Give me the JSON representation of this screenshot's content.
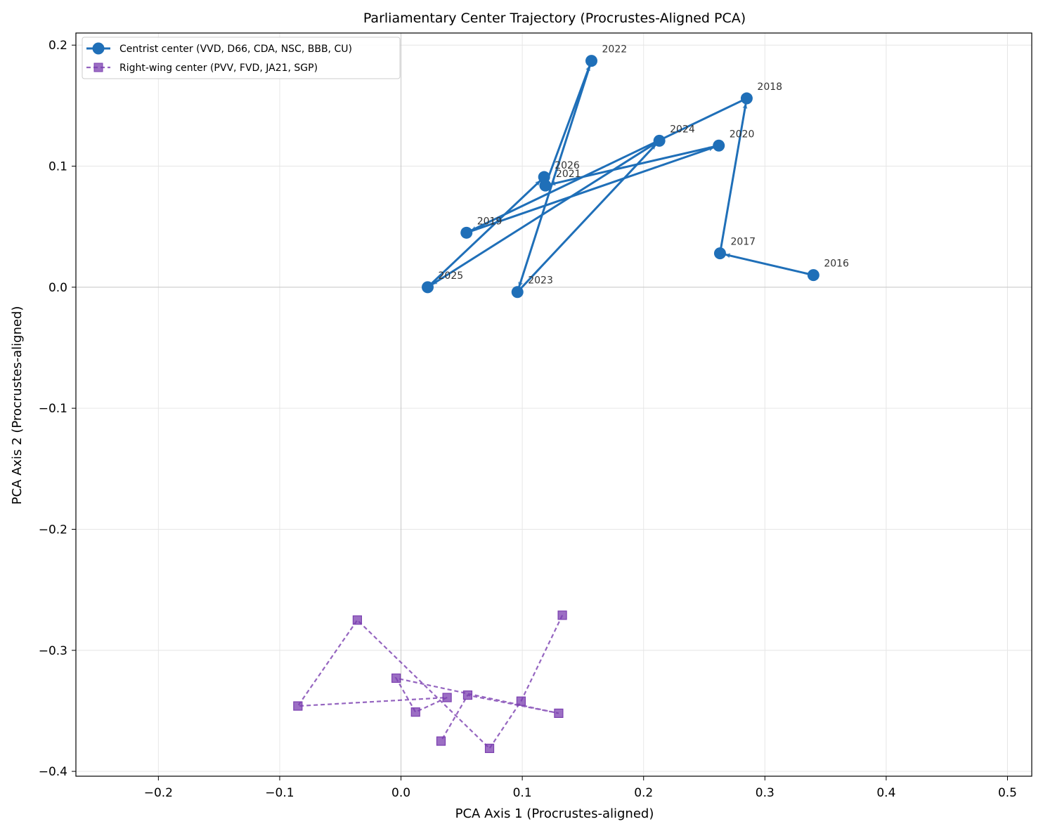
{
  "chart_data": {
    "type": "line",
    "title": "Parliamentary Center Trajectory (Procrustes-Aligned PCA)",
    "xlabel": "PCA Axis 1 (Procrustes-aligned)",
    "ylabel": "PCA Axis 2 (Procrustes-aligned)",
    "xlim": [
      -0.268,
      0.52
    ],
    "ylim": [
      -0.404,
      0.21
    ],
    "xticks": [
      -0.2,
      -0.1,
      0.0,
      0.1,
      0.2,
      0.3,
      0.4,
      0.5
    ],
    "xtick_labels": [
      "−0.2",
      "−0.1",
      "0.0",
      "0.1",
      "0.2",
      "0.3",
      "0.4",
      "0.5"
    ],
    "yticks": [
      -0.4,
      -0.3,
      -0.2,
      -0.1,
      0.0,
      0.1,
      0.2
    ],
    "ytick_labels": [
      "−0.4",
      "−0.3",
      "−0.2",
      "−0.1",
      "0.0",
      "0.1",
      "0.2"
    ],
    "grid": true,
    "legend_position": "top-left",
    "series": [
      {
        "name": "Centrist center (VVD, D66, CDA, NSC, BBB, CU)",
        "color": "#1f6fb8",
        "marker": "circle",
        "line_style": "solid",
        "arrows": true,
        "points": [
          {
            "label": "2016",
            "x": 0.34,
            "y": 0.01
          },
          {
            "label": "2017",
            "x": 0.263,
            "y": 0.028
          },
          {
            "label": "2018",
            "x": 0.285,
            "y": 0.156
          },
          {
            "label": "2019",
            "x": 0.054,
            "y": 0.045
          },
          {
            "label": "2020",
            "x": 0.262,
            "y": 0.117
          },
          {
            "label": "2021",
            "x": 0.119,
            "y": 0.084
          },
          {
            "label": "2022",
            "x": 0.157,
            "y": 0.187
          },
          {
            "label": "2023",
            "x": 0.096,
            "y": -0.004
          },
          {
            "label": "2024",
            "x": 0.213,
            "y": 0.121
          },
          {
            "label": "2025",
            "x": 0.022,
            "y": 0.0
          },
          {
            "label": "2026",
            "x": 0.118,
            "y": 0.091
          }
        ]
      },
      {
        "name": "Right-wing center (PVV, FVD, JA21, SGP)",
        "color": "#7b3fb0",
        "marker": "square",
        "line_style": "dashed",
        "arrows": false,
        "points": [
          {
            "x": 0.133,
            "y": -0.271
          },
          {
            "x": 0.099,
            "y": -0.342
          },
          {
            "x": 0.073,
            "y": -0.381
          },
          {
            "x": -0.036,
            "y": -0.275
          },
          {
            "x": -0.085,
            "y": -0.346
          },
          {
            "x": 0.038,
            "y": -0.339
          },
          {
            "x": 0.012,
            "y": -0.351
          },
          {
            "x": -0.004,
            "y": -0.323
          },
          {
            "x": 0.13,
            "y": -0.352
          },
          {
            "x": 0.055,
            "y": -0.337
          },
          {
            "x": 0.033,
            "y": -0.375
          }
        ]
      }
    ]
  }
}
